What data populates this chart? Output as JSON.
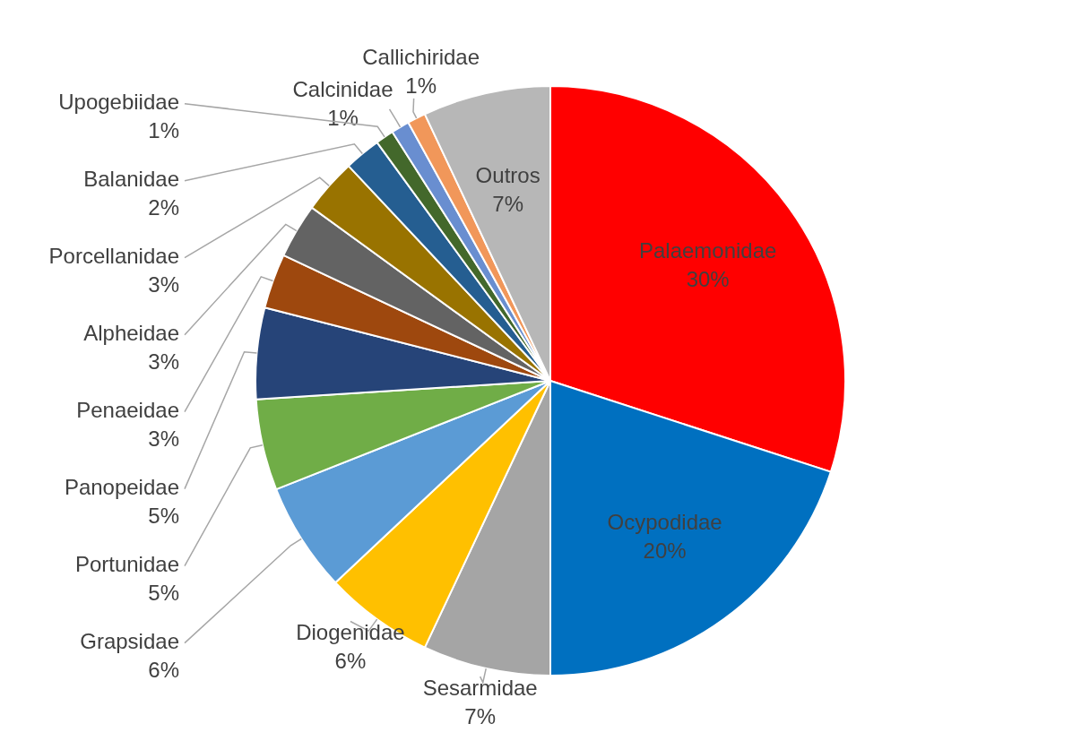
{
  "chart_data": {
    "type": "pie",
    "categories": [
      "Palaemonidae",
      "Ocypodidae",
      "Sesarmidae",
      "Diogenidae",
      "Grapsidae",
      "Portunidae",
      "Panopeidae",
      "Penaeidae",
      "Alpheidae",
      "Porcellanidae",
      "Balanidae",
      "Upogebiidae",
      "Calcinidae",
      "Callichiridae",
      "Outros"
    ],
    "values": [
      30,
      20,
      7,
      6,
      6,
      5,
      5,
      3,
      3,
      3,
      2,
      1,
      1,
      1,
      7
    ],
    "value_labels": [
      "30%",
      "20%",
      "7%",
      "6%",
      "6%",
      "5%",
      "5%",
      "3%",
      "3%",
      "3%",
      "2%",
      "1%",
      "1%",
      "1%",
      "7%"
    ],
    "colors": [
      "#ff0000",
      "#0070c0",
      "#a5a5a5",
      "#ffc000",
      "#5b9bd5",
      "#70ad47",
      "#264478",
      "#9e480e",
      "#636363",
      "#997300",
      "#255e91",
      "#43682b",
      "#698ed0",
      "#f1975a",
      "#b7b7b7"
    ],
    "legend": false
  }
}
